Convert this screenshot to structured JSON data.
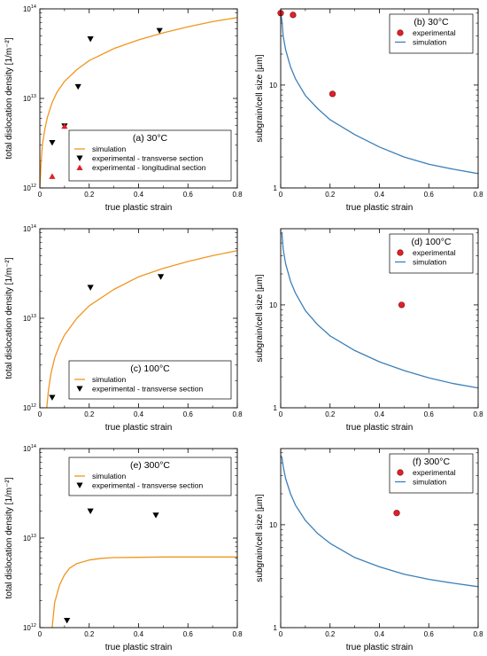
{
  "figure": {
    "panels_count": 6
  },
  "chart_data": [
    {
      "id": "a",
      "type": "line",
      "scale_y": "log",
      "title": "(a) 30°C",
      "xlabel": "true plastic strain",
      "ylabel": "total dislocation density [1/m⁻²]",
      "xlim": [
        0,
        0.8
      ],
      "ylim": [
        1000000000000.0,
        100000000000000.0
      ],
      "x_ticks": [
        "0",
        "0.2",
        "0.4",
        "0.6",
        "0.8"
      ],
      "y_ticks": [
        {
          "v": 1000000000000.0,
          "base": "10",
          "exp": "12"
        },
        {
          "v": 10000000000000.0,
          "base": "10",
          "exp": "13"
        },
        {
          "v": 100000000000000.0,
          "base": "10",
          "exp": "14"
        }
      ],
      "legend_position": "lower-right",
      "colors": {
        "simulation": "#F0961E",
        "experimental_transverse": "#000000",
        "experimental_longitudinal": "#E0202A"
      },
      "series": [
        {
          "name": "simulation",
          "kind": "line",
          "color": "#F0961E",
          "x": [
            0.0,
            0.005,
            0.01,
            0.02,
            0.03,
            0.05,
            0.07,
            0.1,
            0.15,
            0.2,
            0.3,
            0.4,
            0.5,
            0.6,
            0.7,
            0.8
          ],
          "y": [
            1000000000000.0,
            1900000000000.0,
            3000000000000.0,
            4500000000000.0,
            6100000000000.0,
            9000000000000.0,
            11800000000000.0,
            15500000000000.0,
            21000000000000.0,
            26500000000000.0,
            36000000000000.0,
            45000000000000.0,
            54000000000000.0,
            63000000000000.0,
            72000000000000.0,
            80000000000000.0
          ]
        },
        {
          "name": "experimental - transverse section",
          "kind": "marker",
          "marker": "triangle-down",
          "color": "#000000",
          "x": [
            0.05,
            0.1,
            0.155,
            0.205,
            0.485
          ],
          "y": [
            3200000000000.0,
            4900000000000.0,
            13500000000000.0,
            46000000000000.0,
            57000000000000.0
          ]
        },
        {
          "name": "experimental - longitudinal section",
          "kind": "marker",
          "marker": "triangle-up",
          "color": "#E0202A",
          "x": [
            0.05,
            0.1
          ],
          "y": [
            1350000000000.0,
            4900000000000.0
          ]
        }
      ]
    },
    {
      "id": "b",
      "type": "line",
      "scale_y": "log",
      "title": "(b) 30°C",
      "xlabel": "true plastic strain",
      "ylabel": "subgrain/cell size [µm]",
      "xlim": [
        0,
        0.8
      ],
      "ylim": [
        1,
        55
      ],
      "x_ticks": [
        "0",
        "0.2",
        "0.4",
        "0.6",
        "0.8"
      ],
      "y_ticks": [
        {
          "v": 1,
          "label": "1"
        },
        {
          "v": 10,
          "label": "10"
        }
      ],
      "legend_position": "top-right",
      "colors": {
        "simulation": "#3C7FB8",
        "experimental": "#E0202A"
      },
      "series": [
        {
          "name": "experimental",
          "kind": "marker",
          "marker": "circle",
          "color": "#E0202A",
          "x": [
            0.0,
            0.05,
            0.21
          ],
          "y": [
            50,
            48,
            8.2
          ]
        },
        {
          "name": "simulation",
          "kind": "line",
          "color": "#3C7FB8",
          "x": [
            0.0,
            0.005,
            0.01,
            0.02,
            0.04,
            0.06,
            0.1,
            0.15,
            0.2,
            0.3,
            0.4,
            0.5,
            0.6,
            0.7,
            0.8
          ],
          "y": [
            50,
            42,
            30,
            22,
            15,
            11.5,
            7.9,
            5.9,
            4.6,
            3.3,
            2.5,
            2.0,
            1.7,
            1.52,
            1.38
          ]
        }
      ]
    },
    {
      "id": "c",
      "type": "line",
      "scale_y": "log",
      "title": "(c) 100°C",
      "xlabel": "true plastic strain",
      "ylabel": "total dislocation density [1/m⁻²]",
      "xlim": [
        0,
        0.8
      ],
      "ylim": [
        1000000000000.0,
        100000000000000.0
      ],
      "x_ticks": [
        "0",
        "0.2",
        "0.4",
        "0.6",
        "0.8"
      ],
      "y_ticks": [
        {
          "v": 1000000000000.0,
          "base": "10",
          "exp": "12"
        },
        {
          "v": 10000000000000.0,
          "base": "10",
          "exp": "13"
        },
        {
          "v": 100000000000000.0,
          "base": "10",
          "exp": "14"
        }
      ],
      "legend_position": "lower-right",
      "colors": {
        "simulation": "#F0961E",
        "experimental_transverse": "#000000"
      },
      "series": [
        {
          "name": "simulation",
          "kind": "line",
          "color": "#F0961E",
          "x": [
            0.028,
            0.035,
            0.045,
            0.06,
            0.08,
            0.1,
            0.15,
            0.2,
            0.3,
            0.4,
            0.5,
            0.6,
            0.7,
            0.8
          ],
          "y": [
            1000000000000.0,
            1600000000000.0,
            2400000000000.0,
            3600000000000.0,
            5000000000000.0,
            6500000000000.0,
            10000000000000.0,
            13800000000000.0,
            21000000000000.0,
            29000000000000.0,
            36000000000000.0,
            43000000000000.0,
            50000000000000.0,
            57000000000000.0
          ]
        },
        {
          "name": "experimental - transverse section",
          "kind": "marker",
          "marker": "triangle-down",
          "color": "#000000",
          "x": [
            0.05,
            0.205,
            0.49
          ],
          "y": [
            1300000000000.0,
            22000000000000.0,
            29000000000000.0
          ]
        }
      ]
    },
    {
      "id": "d",
      "type": "line",
      "scale_y": "log",
      "title": "(d) 100°C",
      "xlabel": "true plastic strain",
      "ylabel": "subgrain/cell size [µm]",
      "xlim": [
        0,
        0.8
      ],
      "ylim": [
        1,
        55
      ],
      "x_ticks": [
        "0",
        "0.2",
        "0.4",
        "0.6",
        "0.8"
      ],
      "y_ticks": [
        {
          "v": 1,
          "label": "1"
        },
        {
          "v": 10,
          "label": "10"
        }
      ],
      "legend_position": "top-right",
      "colors": {
        "simulation": "#3C7FB8",
        "experimental": "#E0202A"
      },
      "series": [
        {
          "name": "experimental",
          "kind": "marker",
          "marker": "circle",
          "color": "#E0202A",
          "x": [
            0.49
          ],
          "y": [
            10
          ]
        },
        {
          "name": "simulation",
          "kind": "line",
          "color": "#3C7FB8",
          "x": [
            0.0,
            0.005,
            0.01,
            0.02,
            0.04,
            0.06,
            0.1,
            0.15,
            0.2,
            0.3,
            0.4,
            0.5,
            0.6,
            0.7,
            0.8
          ],
          "y": [
            50,
            50,
            35,
            25,
            17,
            13,
            8.8,
            6.4,
            5.0,
            3.6,
            2.8,
            2.3,
            1.95,
            1.72,
            1.56
          ]
        }
      ]
    },
    {
      "id": "e",
      "type": "line",
      "scale_y": "log",
      "title": "(e) 300°C",
      "xlabel": "true plastic strain",
      "ylabel": "total dislocation density [1/m⁻²]",
      "xlim": [
        0,
        0.8
      ],
      "ylim": [
        1000000000000.0,
        100000000000000.0
      ],
      "x_ticks": [
        "0",
        "0.2",
        "0.4",
        "0.6",
        "0.8"
      ],
      "y_ticks": [
        {
          "v": 1000000000000.0,
          "base": "10",
          "exp": "12"
        },
        {
          "v": 10000000000000.0,
          "base": "10",
          "exp": "13"
        },
        {
          "v": 100000000000000.0,
          "base": "10",
          "exp": "14"
        }
      ],
      "legend_position": "top-right",
      "colors": {
        "simulation": "#F0961E",
        "experimental_transverse": "#000000"
      },
      "series": [
        {
          "name": "simulation",
          "kind": "line",
          "color": "#F0961E",
          "x": [
            0.05,
            0.06,
            0.08,
            0.1,
            0.12,
            0.15,
            0.2,
            0.25,
            0.3,
            0.4,
            0.5,
            0.6,
            0.7,
            0.8
          ],
          "y": [
            1000000000000.0,
            1900000000000.0,
            3000000000000.0,
            3900000000000.0,
            4600000000000.0,
            5200000000000.0,
            5700000000000.0,
            5950000000000.0,
            6050000000000.0,
            6100000000000.0,
            6150000000000.0,
            6150000000000.0,
            6150000000000.0,
            6150000000000.0
          ]
        },
        {
          "name": "experimental - transverse section",
          "kind": "marker",
          "marker": "triangle-down",
          "color": "#000000",
          "x": [
            0.11,
            0.205,
            0.47
          ],
          "y": [
            1200000000000.0,
            20000000000000.0,
            18000000000000.0
          ]
        }
      ]
    },
    {
      "id": "f",
      "type": "line",
      "scale_y": "log",
      "title": "(f) 300°C",
      "xlabel": "true plastic strain",
      "ylabel": "subgrain/cell size [µm]",
      "xlim": [
        0,
        0.8
      ],
      "ylim": [
        1,
        55
      ],
      "x_ticks": [
        "0",
        "0.2",
        "0.4",
        "0.6",
        "0.8"
      ],
      "y_ticks": [
        {
          "v": 1,
          "label": "1"
        },
        {
          "v": 10,
          "label": "10"
        }
      ],
      "legend_position": "top-right",
      "colors": {
        "simulation": "#3C7FB8",
        "experimental": "#E0202A"
      },
      "series": [
        {
          "name": "experimental",
          "kind": "marker",
          "marker": "circle",
          "color": "#E0202A",
          "x": [
            0.47
          ],
          "y": [
            13
          ]
        },
        {
          "name": "simulation",
          "kind": "line",
          "color": "#3C7FB8",
          "x": [
            0.0,
            0.005,
            0.01,
            0.02,
            0.04,
            0.06,
            0.1,
            0.15,
            0.2,
            0.3,
            0.4,
            0.5,
            0.6,
            0.7,
            0.8
          ],
          "y": [
            47,
            45,
            37,
            28,
            20,
            15.5,
            11,
            8.2,
            6.6,
            4.8,
            3.9,
            3.3,
            2.95,
            2.7,
            2.5
          ]
        }
      ]
    }
  ]
}
